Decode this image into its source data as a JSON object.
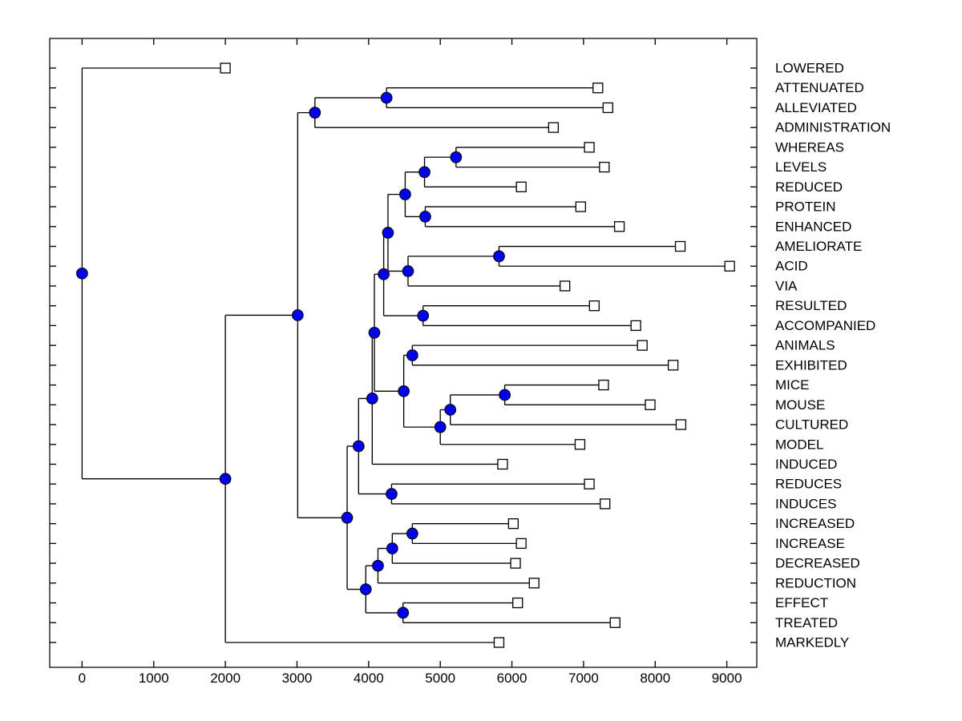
{
  "figure": {
    "title": "",
    "background": "#ffffff"
  },
  "chart_data": {
    "type": "dendrogram",
    "orientation": "left-to-right",
    "title": "",
    "xlabel": "",
    "ylabel": "",
    "x_ticks": [
      0,
      1000,
      2000,
      3000,
      4000,
      5000,
      6000,
      7000,
      8000,
      9000
    ],
    "xlim": [
      -450,
      9420
    ],
    "grid": false,
    "legend": null,
    "colors": {
      "branch": "#000000",
      "node_fill": "#0000F0",
      "node_edge": "#000000",
      "leaf_fill": "#FFFFFF",
      "leaf_edge": "#000000",
      "axis": "#000000",
      "text": "#000000"
    },
    "markers": {
      "internal_node": "filled-circle",
      "leaf_node": "open-square"
    },
    "leaves": [
      {
        "name": "LOWERED",
        "value": 2000
      },
      {
        "name": "ATTENUATED",
        "value": 7200
      },
      {
        "name": "ALLEVIATED",
        "value": 7340
      },
      {
        "name": "ADMINISTRATION",
        "value": 6580
      },
      {
        "name": "WHEREAS",
        "value": 7080
      },
      {
        "name": "LEVELS",
        "value": 7290
      },
      {
        "name": "REDUCED",
        "value": 6130
      },
      {
        "name": "PROTEIN",
        "value": 6960
      },
      {
        "name": "ENHANCED",
        "value": 7500
      },
      {
        "name": "AMELIORATE",
        "value": 8350
      },
      {
        "name": "ACID",
        "value": 9040
      },
      {
        "name": "VIA",
        "value": 6740
      },
      {
        "name": "RESULTED",
        "value": 7150
      },
      {
        "name": "ACCOMPANIED",
        "value": 7730
      },
      {
        "name": "ANIMALS",
        "value": 7820
      },
      {
        "name": "EXHIBITED",
        "value": 8250
      },
      {
        "name": "MICE",
        "value": 7280
      },
      {
        "name": "MOUSE",
        "value": 7930
      },
      {
        "name": "CULTURED",
        "value": 8360
      },
      {
        "name": "MODEL",
        "value": 6950
      },
      {
        "name": "INDUCED",
        "value": 5870
      },
      {
        "name": "REDUCES",
        "value": 7080
      },
      {
        "name": "INDUCES",
        "value": 7300
      },
      {
        "name": "INCREASED",
        "value": 6020
      },
      {
        "name": "INCREASE",
        "value": 6130
      },
      {
        "name": "DECREASED",
        "value": 6050
      },
      {
        "name": "REDUCTION",
        "value": 6310
      },
      {
        "name": "EFFECT",
        "value": 6080
      },
      {
        "name": "TREATED",
        "value": 7440
      },
      {
        "name": "MARKEDLY",
        "value": 5820
      }
    ],
    "nodes": [
      {
        "id": "root",
        "value": 0,
        "children": [
          "leaf:0",
          "n2000"
        ]
      },
      {
        "id": "n2000",
        "value": 2000,
        "children": [
          "n3000",
          "leaf:29"
        ]
      },
      {
        "id": "n3000",
        "value": 3010,
        "children": [
          "n3270",
          "nT"
        ]
      },
      {
        "id": "n3270",
        "value": 3250,
        "children": [
          "n4250",
          "leaf:3"
        ]
      },
      {
        "id": "n4250",
        "value": 4250,
        "children": [
          "leaf:1",
          "leaf:2"
        ]
      },
      {
        "id": "nT",
        "value": 3700,
        "children": [
          "nR",
          "nU"
        ]
      },
      {
        "id": "nR",
        "value": 3860,
        "children": [
          "nP",
          "nS"
        ]
      },
      {
        "id": "nP",
        "value": 4050,
        "children": [
          "nE",
          "leaf:20"
        ]
      },
      {
        "id": "nE",
        "value": 4080,
        "children": [
          "nB",
          "nG"
        ]
      },
      {
        "id": "nB",
        "value": 4210,
        "children": [
          "nA",
          "nD"
        ]
      },
      {
        "id": "nA",
        "value": 4270,
        "children": [
          "n4510",
          "nC"
        ]
      },
      {
        "id": "n4510",
        "value": 4510,
        "children": [
          "n4780",
          "n4790"
        ]
      },
      {
        "id": "n4780",
        "value": 4780,
        "children": [
          "n5220",
          "leaf:6"
        ]
      },
      {
        "id": "n5220",
        "value": 5220,
        "children": [
          "leaf:4",
          "leaf:5"
        ]
      },
      {
        "id": "n4790",
        "value": 4790,
        "children": [
          "leaf:7",
          "leaf:8"
        ]
      },
      {
        "id": "nC",
        "value": 4550,
        "children": [
          "n5820",
          "leaf:11"
        ]
      },
      {
        "id": "n5820",
        "value": 5820,
        "children": [
          "leaf:9",
          "leaf:10"
        ]
      },
      {
        "id": "nD",
        "value": 4760,
        "children": [
          "leaf:12",
          "leaf:13"
        ]
      },
      {
        "id": "nG",
        "value": 4490,
        "children": [
          "nF",
          "nH"
        ]
      },
      {
        "id": "nF",
        "value": 4610,
        "children": [
          "leaf:14",
          "leaf:15"
        ]
      },
      {
        "id": "nH",
        "value": 5000,
        "children": [
          "nI",
          "leaf:19"
        ]
      },
      {
        "id": "nI",
        "value": 5140,
        "children": [
          "nJ",
          "leaf:18"
        ]
      },
      {
        "id": "nJ",
        "value": 5900,
        "children": [
          "leaf:16",
          "leaf:17"
        ]
      },
      {
        "id": "nS",
        "value": 4320,
        "children": [
          "leaf:21",
          "leaf:22"
        ]
      },
      {
        "id": "nU",
        "value": 3960,
        "children": [
          "nV",
          "nW"
        ]
      },
      {
        "id": "nV",
        "value": 4130,
        "children": [
          "nX",
          "leaf:26"
        ]
      },
      {
        "id": "nX",
        "value": 4330,
        "children": [
          "nY",
          "leaf:25"
        ]
      },
      {
        "id": "nY",
        "value": 4610,
        "children": [
          "leaf:23",
          "leaf:24"
        ]
      },
      {
        "id": "nW",
        "value": 4480,
        "children": [
          "leaf:27",
          "leaf:28"
        ]
      }
    ]
  }
}
